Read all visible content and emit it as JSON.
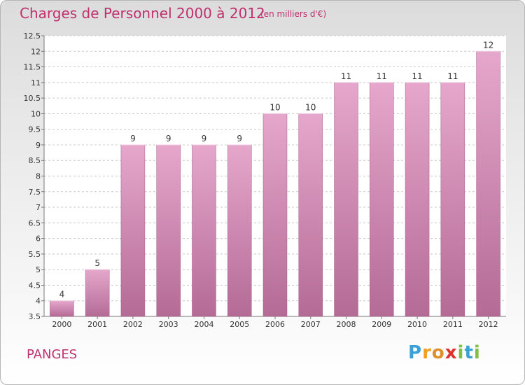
{
  "title": "Charges de Personnel 2000 à 2012",
  "subtitle": "(en milliers d'€)",
  "commune": "PANGES",
  "logo": {
    "text": "Proxiti",
    "letters": [
      "P",
      "r",
      "o",
      "x",
      "i",
      "t",
      "i"
    ],
    "colors": [
      "#3aa0d8",
      "#f0a020",
      "#e0902a",
      "#e0302a",
      "#80c040",
      "#3aa0d8",
      "#80c040"
    ]
  },
  "chart_data": {
    "type": "bar",
    "categories": [
      "2000",
      "2001",
      "2002",
      "2003",
      "2004",
      "2005",
      "2006",
      "2007",
      "2008",
      "2009",
      "2010",
      "2011",
      "2012"
    ],
    "values": [
      4,
      5,
      9,
      9,
      9,
      9,
      10,
      10,
      11,
      11,
      11,
      11,
      12
    ],
    "labels": [
      "4",
      "5",
      "9",
      "9",
      "9",
      "9",
      "10",
      "10",
      "11",
      "11",
      "11",
      "11",
      "12"
    ],
    "yticks": [
      3.5,
      4,
      4.5,
      5,
      5.5,
      6,
      6.5,
      7,
      7.5,
      8,
      8.5,
      9,
      9.5,
      10,
      10.5,
      11,
      11.5,
      12,
      12.5
    ],
    "ylim": [
      3.5,
      12.5
    ],
    "grid": "horizontal dashed",
    "bar_color": "#d88fbb",
    "title": "Charges de Personnel 2000 à 2012",
    "xlabel": "",
    "ylabel": ""
  }
}
